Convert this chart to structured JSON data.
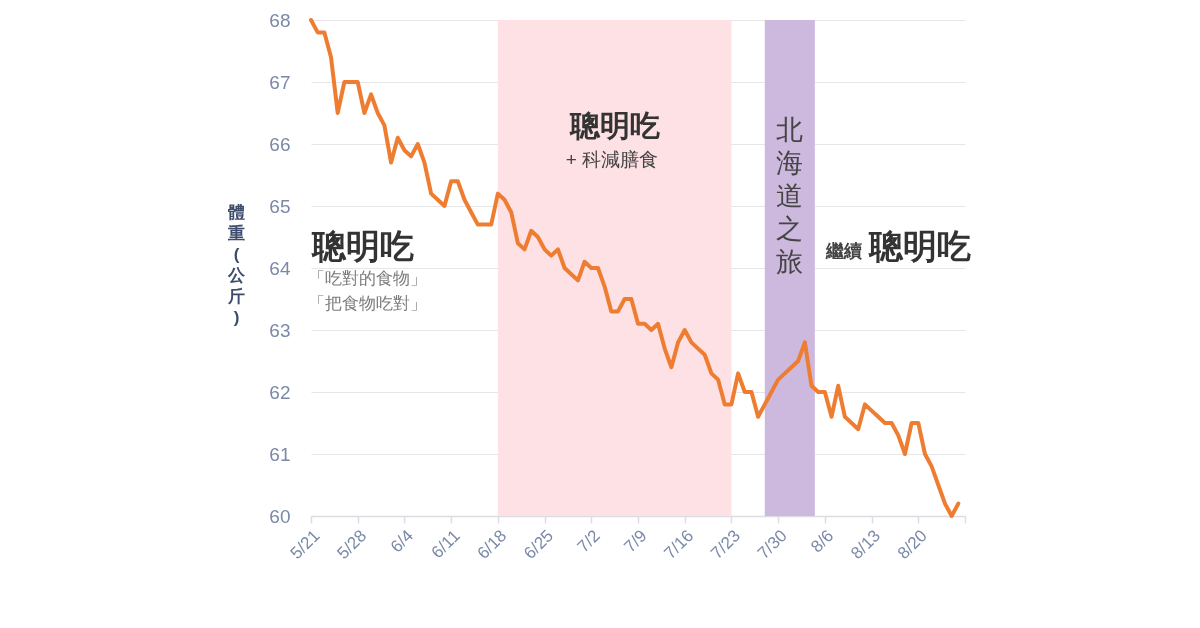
{
  "chart_data": {
    "type": "line",
    "ylabel": "體重(公斤)",
    "annotations": [
      "聰明吃",
      "「吃對的食物」",
      "「把食物吃對」",
      "+ 科減膳食",
      "繼續",
      "聰明吃"
    ],
    "x": [
      "--05-21",
      "--05-22",
      "--05-23",
      "--05-24",
      "--05-25",
      "--05-26",
      "--05-27",
      "--05-28",
      "--05-29",
      "--05-30",
      "--05-31",
      "--06-01",
      "--06-02",
      "--06-03",
      "--06-04",
      "--06-05",
      "--06-06",
      "--06-07",
      "--06-08",
      "--06-09",
      "--06-10",
      "--06-11",
      "--06-12",
      "--06-13",
      "--06-14",
      "--06-15",
      "--06-16",
      "--06-17",
      "--06-18",
      "--06-19",
      "--06-20",
      "--06-21",
      "--06-22",
      "--06-23",
      "--06-24",
      "--06-25",
      "--06-26",
      "--06-27",
      "--06-28",
      "--06-29",
      "--06-30",
      "--07-01",
      "--07-02",
      "--07-03",
      "--07-04",
      "--07-05",
      "--07-06",
      "--07-07",
      "--07-08",
      "--07-09",
      "--07-10",
      "--07-11",
      "--07-12",
      "--07-13",
      "--07-14",
      "--07-15",
      "--07-16",
      "--07-17",
      "--07-18",
      "--07-19",
      "--07-20",
      "--07-21",
      "--07-22",
      "--07-23",
      "--07-24",
      "--07-25",
      "--07-26",
      "--07-27",
      "--07-28",
      "--07-29",
      "--07-30",
      "--07-31",
      "--08-01",
      "--08-02",
      "--08-03",
      "--08-04",
      "--08-05",
      "--08-06",
      "--08-07",
      "--08-08",
      "--08-09",
      "--08-10",
      "--08-11",
      "--08-12",
      "--08-13",
      "--08-14",
      "--08-15",
      "--08-16",
      "--08-17",
      "--08-18",
      "--08-19",
      "--08-20",
      "--08-21",
      "--08-22",
      "--08-23",
      "--08-24",
      "--08-25",
      "--08-26"
    ],
    "series": [
      {
        "color": "#ee7d31",
        "values": [
          68.0,
          67.8,
          67.8,
          67.4,
          66.5,
          67.0,
          67.0,
          67.0,
          66.5,
          66.8,
          66.5,
          66.3,
          65.7,
          66.1,
          65.9,
          65.8,
          66.0,
          65.7,
          65.2,
          65.1,
          65.0,
          65.4,
          65.4,
          65.1,
          64.9,
          64.7,
          64.7,
          64.7,
          65.2,
          65.1,
          64.9,
          64.4,
          64.3,
          64.6,
          64.5,
          64.3,
          64.2,
          64.3,
          64.0,
          63.9,
          63.8,
          64.1,
          64.0,
          64.0,
          63.7,
          63.3,
          63.3,
          63.5,
          63.5,
          63.1,
          63.1,
          63.0,
          63.1,
          62.7,
          62.4,
          62.8,
          63.0,
          62.8,
          62.7,
          62.6,
          62.3,
          62.2,
          61.8,
          61.8,
          62.3,
          62.0,
          62.0,
          61.6,
          61.8,
          62.0,
          62.2,
          62.3,
          62.4,
          62.5,
          62.8,
          62.1,
          62.0,
          62.0,
          61.6,
          62.1,
          61.6,
          61.5,
          61.4,
          61.8,
          61.7,
          61.6,
          61.5,
          61.5,
          61.3,
          61.0,
          61.5,
          61.5,
          61.0,
          60.8,
          60.5,
          60.2,
          60.0,
          60.2
        ]
      }
    ],
    "xlim": [
      "--05-21",
      "--08-27"
    ],
    "xticks": [
      {
        "value": "--05-21",
        "label": "5/21"
      },
      {
        "value": "--05-28",
        "label": "5/28"
      },
      {
        "value": "--06-04",
        "label": "6/4"
      },
      {
        "value": "--06-11",
        "label": "6/11"
      },
      {
        "value": "--06-18",
        "label": "6/18"
      },
      {
        "value": "--06-25",
        "label": "6/25"
      },
      {
        "value": "--07-02",
        "label": "7/2"
      },
      {
        "value": "--07-09",
        "label": "7/9"
      },
      {
        "value": "--07-16",
        "label": "7/16"
      },
      {
        "value": "--07-23",
        "label": "7/23"
      },
      {
        "value": "--07-30",
        "label": "7/30"
      },
      {
        "value": "--08-06",
        "label": "8/6"
      },
      {
        "value": "--08-13",
        "label": "8/13"
      },
      {
        "value": "--08-20",
        "label": "8/20"
      },
      {
        "value": "--08-27",
        "label": null
      }
    ],
    "ylim": [
      60,
      68
    ],
    "yticks": [
      60,
      61,
      62,
      63,
      64,
      65,
      66,
      67,
      68
    ],
    "grid": "y",
    "line_style": "solid",
    "bands": [
      {
        "axis": "x",
        "from": "--06-18",
        "to": "--07-23",
        "label": "聰明吃",
        "color": "#fde1e4"
      },
      {
        "axis": "x",
        "from": "--07-28",
        "to": "--08-04T12:00",
        "label": "北海道之旅",
        "color": "#cdb8de"
      }
    ]
  }
}
